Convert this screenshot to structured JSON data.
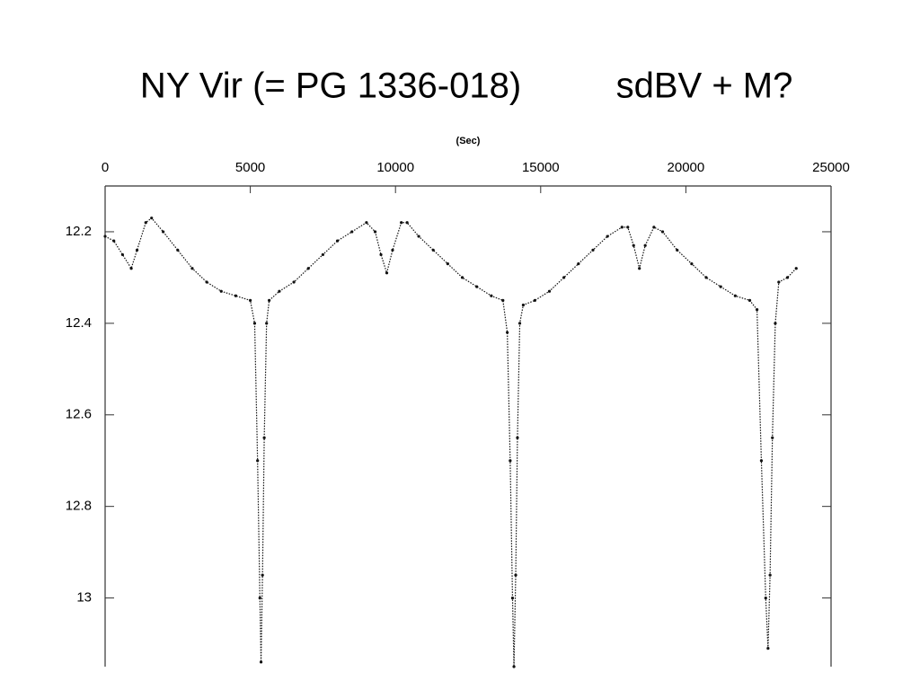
{
  "chart_data": {
    "type": "line",
    "title": "NY Vir (= PG 1336-018)",
    "subtitle": "sdBV + M?",
    "x_label": "(Sec)",
    "xlim": [
      0,
      25000
    ],
    "xticks": [
      0,
      5000,
      10000,
      15000,
      20000,
      25000
    ],
    "ylim": [
      12.1,
      13.15
    ],
    "yticks": [
      12.2,
      12.4,
      12.6,
      12.8,
      13
    ],
    "y_inverted": true,
    "x_axis_position": "top",
    "color": "#111111",
    "x": [
      0,
      300,
      600,
      900,
      1100,
      1400,
      1600,
      2000,
      2500,
      3000,
      3500,
      4000,
      4500,
      5000,
      5150,
      5250,
      5330,
      5370,
      5420,
      5480,
      5560,
      5650,
      6000,
      6500,
      7000,
      7500,
      8000,
      8500,
      9000,
      9300,
      9500,
      9700,
      9900,
      10200,
      10400,
      10800,
      11300,
      11800,
      12300,
      12800,
      13300,
      13700,
      13850,
      13950,
      14030,
      14080,
      14140,
      14200,
      14280,
      14400,
      14800,
      15300,
      15800,
      16300,
      16800,
      17300,
      17800,
      18000,
      18200,
      18400,
      18600,
      18900,
      19200,
      19700,
      20200,
      20700,
      21200,
      21700,
      22200,
      22450,
      22600,
      22750,
      22830,
      22900,
      22980,
      23080,
      23200,
      23500,
      23800
    ],
    "values": [
      12.21,
      12.22,
      12.25,
      12.28,
      12.24,
      12.18,
      12.17,
      12.2,
      12.24,
      12.28,
      12.31,
      12.33,
      12.34,
      12.35,
      12.4,
      12.7,
      13,
      13.14,
      12.95,
      12.65,
      12.4,
      12.35,
      12.33,
      12.31,
      12.28,
      12.25,
      12.22,
      12.2,
      12.18,
      12.2,
      12.25,
      12.29,
      12.24,
      12.18,
      12.18,
      12.21,
      12.24,
      12.27,
      12.3,
      12.32,
      12.34,
      12.35,
      12.42,
      12.7,
      13,
      13.15,
      12.95,
      12.65,
      12.4,
      12.36,
      12.35,
      12.33,
      12.3,
      12.27,
      12.24,
      12.21,
      12.19,
      12.19,
      12.23,
      12.28,
      12.23,
      12.19,
      12.2,
      12.24,
      12.27,
      12.3,
      12.32,
      12.34,
      12.35,
      12.37,
      12.7,
      13,
      13.11,
      12.95,
      12.65,
      12.4,
      12.31,
      12.3,
      12.28
    ]
  }
}
